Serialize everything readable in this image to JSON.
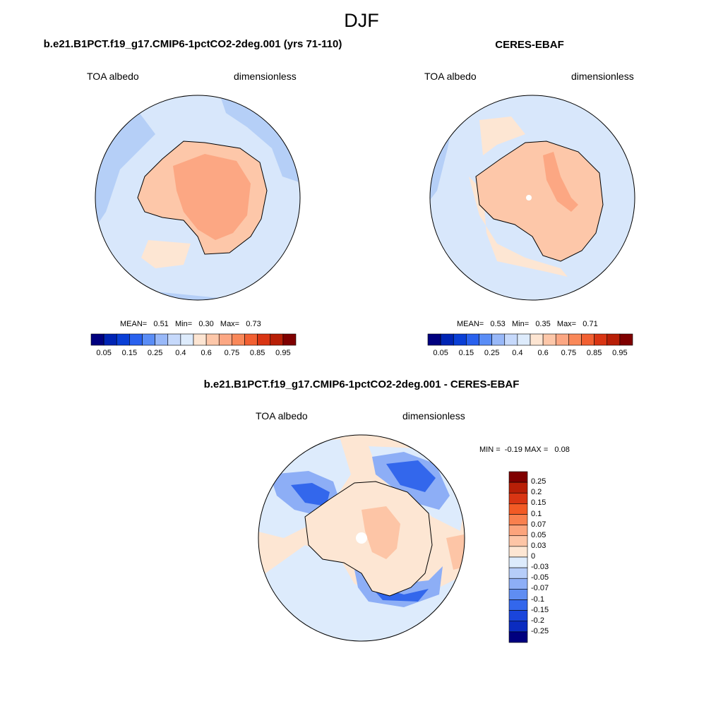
{
  "figure": {
    "title": "DJF"
  },
  "panels": [
    {
      "title": "b.e21.B1PCT.f19_g17.CMIP6-1pctCO2-2deg.001 (yrs 71-110)",
      "variable": "TOA albedo",
      "units": "dimensionless",
      "stats": {
        "mean_label": "MEAN=",
        "mean": "0.51",
        "min_label": "Min=",
        "min": "0.30",
        "max_label": "Max=",
        "max": "0.73"
      }
    },
    {
      "title": "CERES-EBAF",
      "variable": "TOA albedo",
      "units": "dimensionless",
      "stats": {
        "mean_label": "MEAN=",
        "mean": "0.53",
        "min_label": "Min=",
        "min": "0.35",
        "max_label": "Max=",
        "max": "0.71"
      }
    },
    {
      "title": "b.e21.B1PCT.f19_g17.CMIP6-1pctCO2-2deg.001 - CERES-EBAF",
      "variable": "TOA albedo",
      "units": "dimensionless",
      "stats": {
        "min_label": "MIN =",
        "min": "-0.19",
        "max_label": "MAX =",
        "max": "0.08"
      }
    }
  ],
  "colorbars": {
    "field": {
      "colors": [
        "#00007f",
        "#0024b4",
        "#0a3fd6",
        "#2961ee",
        "#5a8df6",
        "#98b8f8",
        "#c6d9fb",
        "#ddebfc",
        "#fde5d2",
        "#fdc7a9",
        "#fca783",
        "#f98859",
        "#f26032",
        "#d93513",
        "#b81f07",
        "#7f0000"
      ],
      "labels": [
        "0.05",
        "0.15",
        "0.25",
        "0.4",
        "0.6",
        "0.75",
        "0.85",
        "0.95"
      ]
    },
    "diff": {
      "colors": [
        "#7f0000",
        "#b81f07",
        "#d93513",
        "#f25a25",
        "#f9804e",
        "#fca47c",
        "#fdc5a6",
        "#fde6d3",
        "#ddebfc",
        "#b6cdf9",
        "#8daef6",
        "#5f8df2",
        "#3367ec",
        "#1a45db",
        "#0b2cc0",
        "#00007f"
      ],
      "labels": [
        "0.25",
        "0.2",
        "0.15",
        "0.1",
        "0.07",
        "0.05",
        "0.03",
        "0",
        "-0.03",
        "-0.05",
        "-0.07",
        "-0.1",
        "-0.15",
        "-0.2",
        "-0.25"
      ]
    }
  }
}
